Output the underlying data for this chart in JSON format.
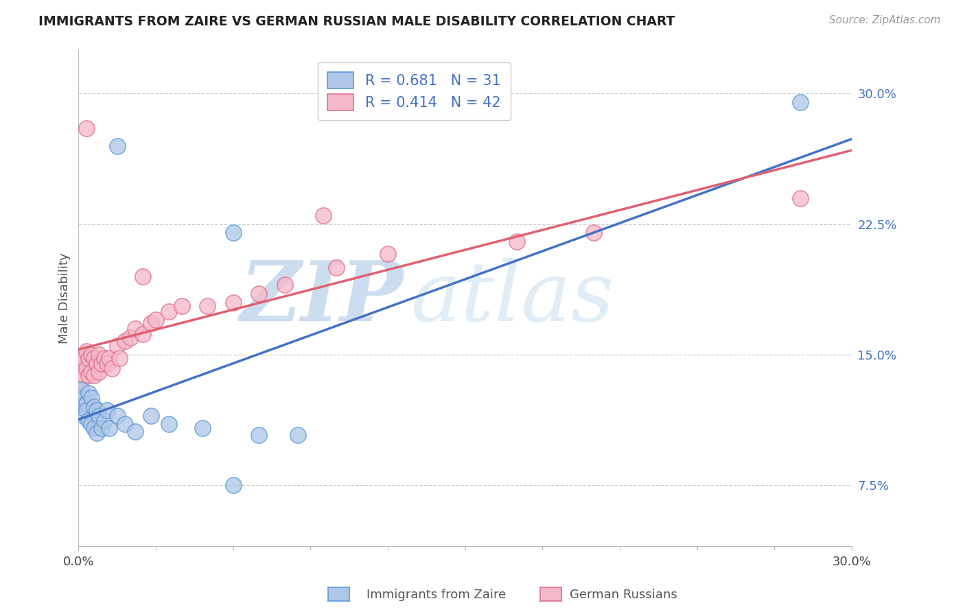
{
  "title": "IMMIGRANTS FROM ZAIRE VS GERMAN RUSSIAN MALE DISABILITY CORRELATION CHART",
  "source": "Source: ZipAtlas.com",
  "ylabel": "Male Disability",
  "legend_R1": "R = 0.681",
  "legend_N1": "N = 31",
  "legend_R2": "R = 0.414",
  "legend_N2": "N = 42",
  "color_blue_fill": "#aec6e8",
  "color_pink_fill": "#f4b8c8",
  "color_blue_edge": "#5b9bd5",
  "color_pink_edge": "#e07090",
  "color_blue_line": "#4472C4",
  "color_pink_line": "#E06070",
  "watermark_zip": "ZIP",
  "watermark_atlas": "atlas",
  "background_color": "#ffffff",
  "grid_color": "#cccccc",
  "xlim": [
    0.0,
    0.3
  ],
  "ylim": [
    0.04,
    0.325
  ],
  "yticks": [
    0.075,
    0.15,
    0.225,
    0.3
  ],
  "ytick_labels": [
    "7.5%",
    "15.0%",
    "22.5%",
    "30.0%"
  ],
  "xtick_labels_left": "0.0%",
  "xtick_labels_right": "30.0%",
  "bottom_label1": "Immigrants from Zaire",
  "bottom_label2": "German Russians",
  "zaire_x": [
    0.001,
    0.001,
    0.002,
    0.002,
    0.003,
    0.003,
    0.004,
    0.004,
    0.005,
    0.005,
    0.006,
    0.006,
    0.007,
    0.007,
    0.008,
    0.009,
    0.01,
    0.011,
    0.012,
    0.015,
    0.018,
    0.022,
    0.028,
    0.035,
    0.048,
    0.06,
    0.07,
    0.085,
    0.015,
    0.28,
    0.06
  ],
  "zaire_y": [
    0.13,
    0.12,
    0.125,
    0.115,
    0.122,
    0.118,
    0.128,
    0.112,
    0.125,
    0.11,
    0.12,
    0.108,
    0.118,
    0.105,
    0.115,
    0.108,
    0.112,
    0.118,
    0.108,
    0.115,
    0.11,
    0.106,
    0.115,
    0.11,
    0.108,
    0.075,
    0.104,
    0.104,
    0.27,
    0.295,
    0.22
  ],
  "german_x": [
    0.001,
    0.001,
    0.002,
    0.002,
    0.003,
    0.003,
    0.004,
    0.004,
    0.005,
    0.005,
    0.006,
    0.006,
    0.007,
    0.008,
    0.008,
    0.009,
    0.01,
    0.011,
    0.012,
    0.013,
    0.015,
    0.016,
    0.018,
    0.02,
    0.022,
    0.025,
    0.028,
    0.03,
    0.035,
    0.04,
    0.05,
    0.06,
    0.07,
    0.08,
    0.1,
    0.12,
    0.003,
    0.17,
    0.2,
    0.28,
    0.025,
    0.095
  ],
  "german_y": [
    0.145,
    0.135,
    0.148,
    0.138,
    0.152,
    0.142,
    0.148,
    0.138,
    0.15,
    0.14,
    0.148,
    0.138,
    0.145,
    0.15,
    0.14,
    0.145,
    0.148,
    0.145,
    0.148,
    0.142,
    0.155,
    0.148,
    0.158,
    0.16,
    0.165,
    0.162,
    0.168,
    0.17,
    0.175,
    0.178,
    0.178,
    0.18,
    0.185,
    0.19,
    0.2,
    0.208,
    0.28,
    0.215,
    0.22,
    0.24,
    0.195,
    0.23
  ]
}
